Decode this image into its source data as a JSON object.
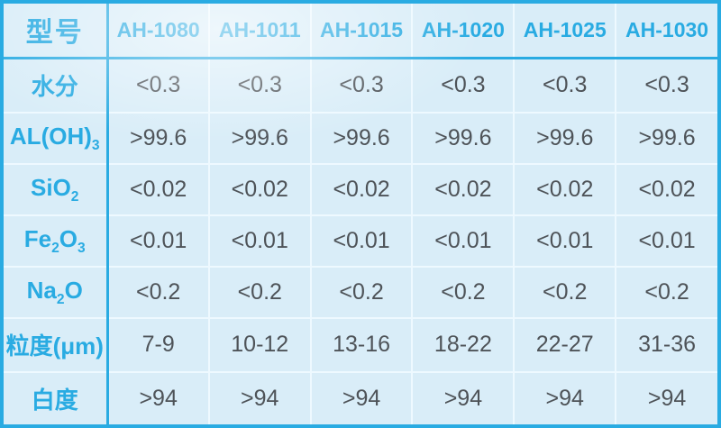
{
  "colors": {
    "accent": "#29abe2",
    "cell_bg": "#d9edf8",
    "grid": "#eef9ff",
    "value_text": "#4e5358",
    "bottom_edge": "#17506e"
  },
  "table": {
    "corner_label": "型号",
    "columns": [
      "AH-1080",
      "AH-1011",
      "AH-1015",
      "AH-1020",
      "AH-1025",
      "AH-1030"
    ],
    "rows": [
      {
        "label_parts": [
          {
            "t": "水分"
          }
        ],
        "values": [
          "<0.3",
          "<0.3",
          "<0.3",
          "<0.3",
          "<0.3",
          "<0.3"
        ]
      },
      {
        "label_parts": [
          {
            "t": "AL(OH)"
          },
          {
            "t": "3",
            "sub": true
          }
        ],
        "values": [
          ">99.6",
          ">99.6",
          ">99.6",
          ">99.6",
          ">99.6",
          ">99.6"
        ]
      },
      {
        "label_parts": [
          {
            "t": "SiO"
          },
          {
            "t": "2",
            "sub": true
          }
        ],
        "values": [
          "<0.02",
          "<0.02",
          "<0.02",
          "<0.02",
          "<0.02",
          "<0.02"
        ]
      },
      {
        "label_parts": [
          {
            "t": "Fe"
          },
          {
            "t": "2",
            "sub": true
          },
          {
            "t": "O"
          },
          {
            "t": "3",
            "sub": true
          }
        ],
        "values": [
          "<0.01",
          "<0.01",
          "<0.01",
          "<0.01",
          "<0.01",
          "<0.01"
        ]
      },
      {
        "label_parts": [
          {
            "t": "Na"
          },
          {
            "t": "2",
            "sub": true
          },
          {
            "t": "O"
          }
        ],
        "values": [
          "<0.2",
          "<0.2",
          "<0.2",
          "<0.2",
          "<0.2",
          "<0.2"
        ]
      },
      {
        "label_parts": [
          {
            "t": "粒度(μm)"
          }
        ],
        "values": [
          "7-9",
          "10-12",
          "13-16",
          "18-22",
          "22-27",
          "31-36"
        ]
      },
      {
        "label_parts": [
          {
            "t": "白度"
          }
        ],
        "values": [
          ">94",
          ">94",
          ">94",
          ">94",
          ">94",
          ">94"
        ]
      }
    ]
  }
}
